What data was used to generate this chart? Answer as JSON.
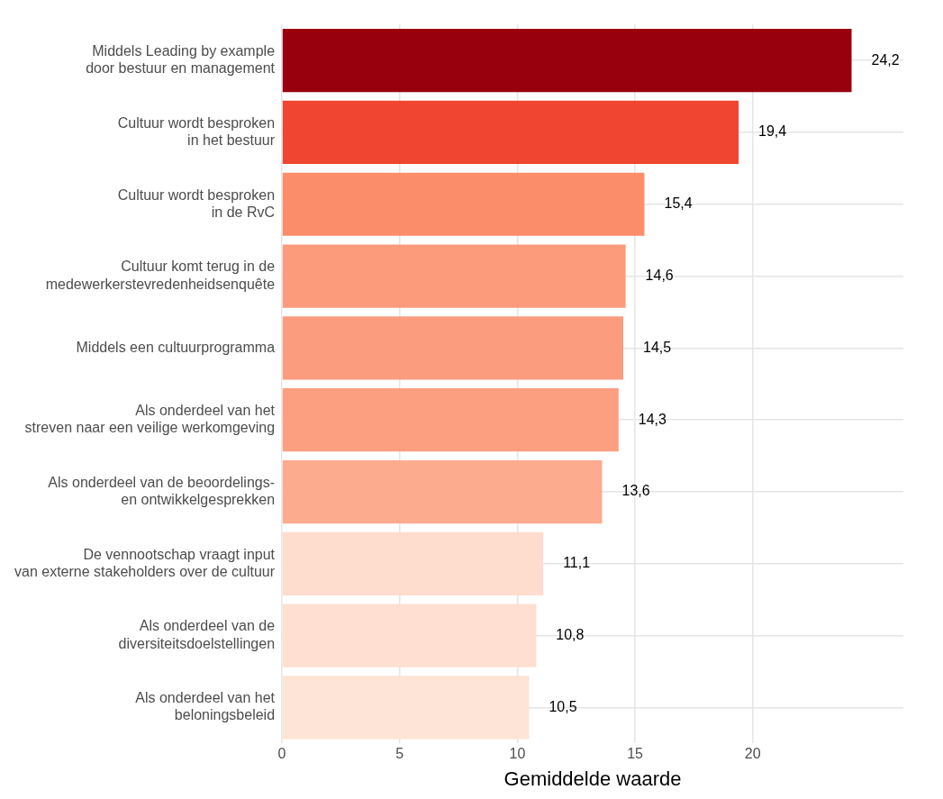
{
  "chart_data": {
    "type": "bar",
    "orientation": "horizontal",
    "xlabel": "Gemiddelde waarde",
    "categories": [
      "Middels Leading by example\ndoor bestuur en management",
      "Cultuur wordt besproken\nin het bestuur",
      "Cultuur wordt besproken\nin de RvC",
      "Cultuur komt terug in de\nmedewerkerstevredenheidsenquête",
      "Middels een cultuurprogramma",
      "Als onderdeel van het\nstreven naar een veilige werkomgeving",
      "Als onderdeel van de beoordelings-\nen ontwikkelgesprekken",
      "De vennootschap vraagt input\nvan externe stakeholders over de cultuur",
      "Als onderdeel van de\ndiversiteitsdoelstellingen",
      "Als onderdeel van het\nbeloningsbeleid"
    ],
    "values": [
      24.2,
      19.4,
      15.4,
      14.6,
      14.5,
      14.3,
      13.6,
      11.1,
      10.8,
      10.5
    ],
    "value_labels": [
      "24,2",
      "19,4",
      "15,4",
      "14,6",
      "14,5",
      "14,3",
      "13,6",
      "11,1",
      "10,8",
      "10,5"
    ],
    "colors": [
      "#99000d",
      "#f04530",
      "#fc8d6a",
      "#fc9b7c",
      "#fc9c7e",
      "#fc9f81",
      "#fcab8f",
      "#fedcce",
      "#fedfd2",
      "#fee3d7"
    ],
    "xlim": [
      0,
      26.4
    ],
    "xticks": [
      0,
      5,
      10,
      15,
      20
    ],
    "grid": true,
    "legend": false
  }
}
